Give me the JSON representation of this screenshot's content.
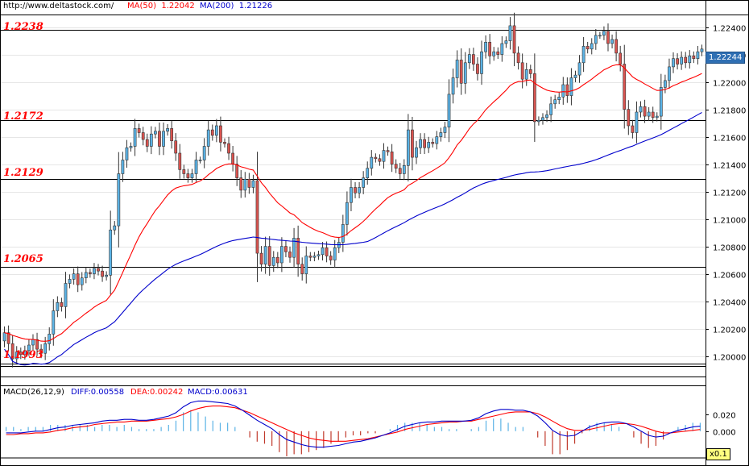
{
  "header": {
    "url": "http://www.deltastock.com/",
    "ma50_label": "MA(50)",
    "ma50_value": "1.22042",
    "ma200_label": "MA(200)",
    "ma200_value": "1.21226"
  },
  "macd_header": {
    "title": "MACD(26,12,9)",
    "diff": "DIFF:0.00558",
    "dea": "DEA:0.00242",
    "macd": "MACD:0.00631"
  },
  "levels": [
    "1.2238",
    "1.2172",
    "1.2129",
    "1.2065",
    "1.1993"
  ],
  "price_badge": "1.22244",
  "zoom_badge": "x0.1",
  "colors": {
    "up": "#5bb3e6",
    "down": "#d9534f",
    "ma50": "#ff0000",
    "ma200": "#0000cc",
    "macd_hist": "#5bb3e6",
    "macd_neg": "#c0392b"
  },
  "chart_data": [
    {
      "type": "candlestick",
      "ylim": [
        1.1988,
        1.2248
      ],
      "yticks": [
        "1.22400",
        "1.22200",
        "1.22000",
        "1.21800",
        "1.21600",
        "1.21400",
        "1.21200",
        "1.21000",
        "1.20800",
        "1.20600",
        "1.20400",
        "1.20200",
        "1.20000"
      ],
      "horizontal_levels": [
        1.2238,
        1.2172,
        1.2129,
        1.2065,
        1.1993
      ],
      "last_price": 1.22244,
      "close": [
        1.2017,
        1.2009,
        1.1998,
        1.2003,
        1.2001,
        1.2004,
        1.2008,
        1.2012,
        1.2005,
        1.2002,
        1.2009,
        1.2016,
        1.2033,
        1.2039,
        1.2036,
        1.2053,
        1.2056,
        1.206,
        1.2052,
        1.2057,
        1.2061,
        1.206,
        1.2064,
        1.2062,
        1.2058,
        1.2059,
        1.2092,
        1.2095,
        1.2133,
        1.2143,
        1.2152,
        1.2153,
        1.2166,
        1.2163,
        1.2158,
        1.2153,
        1.2162,
        1.2164,
        1.2153,
        1.2164,
        1.2166,
        1.2157,
        1.2148,
        1.2136,
        1.2133,
        1.213,
        1.2133,
        1.2143,
        1.2143,
        1.2153,
        1.2165,
        1.2161,
        1.2168,
        1.2156,
        1.2155,
        1.2148,
        1.214,
        1.213,
        1.2121,
        1.2129,
        1.2123,
        1.2128,
        1.2075,
        1.2067,
        1.208,
        1.2066,
        1.2072,
        1.2068,
        1.208,
        1.2076,
        1.2072,
        1.2086,
        1.2067,
        1.206,
        1.2073,
        1.2072,
        1.2073,
        1.2074,
        1.2079,
        1.2073,
        1.207,
        1.2079,
        1.2083,
        1.2096,
        1.2112,
        1.2123,
        1.2119,
        1.2123,
        1.213,
        1.2137,
        1.2145,
        1.2144,
        1.2142,
        1.215,
        1.2149,
        1.214,
        1.2137,
        1.2133,
        1.2139,
        1.2165,
        1.2145,
        1.2152,
        1.2158,
        1.2152,
        1.2156,
        1.2155,
        1.216,
        1.2163,
        1.2167,
        1.2191,
        1.2203,
        1.2216,
        1.2199,
        1.2214,
        1.222,
        1.2213,
        1.2206,
        1.2222,
        1.2229,
        1.2219,
        1.2222,
        1.222,
        1.2228,
        1.223,
        1.2241,
        1.2221,
        1.2214,
        1.2202,
        1.2209,
        1.2206,
        1.2171,
        1.2172,
        1.2174,
        1.2176,
        1.2184,
        1.2187,
        1.2189,
        1.2198,
        1.219,
        1.2203,
        1.2205,
        1.2214,
        1.2226,
        1.2224,
        1.2228,
        1.2234,
        1.2234,
        1.2237,
        1.2228,
        1.2231,
        1.2221,
        1.2213,
        1.218,
        1.2168,
        1.2163,
        1.2178,
        1.2182,
        1.2175,
        1.2178,
        1.2174,
        1.2175,
        1.2196,
        1.2201,
        1.2211,
        1.2217,
        1.2213,
        1.2218,
        1.2214,
        1.2219,
        1.2217,
        1.2222,
        1.2224
      ],
      "macd": {
        "ylim": [
          -0.03,
          0.045
        ],
        "yticks": [
          "0.020",
          "0.000"
        ],
        "diff": [
          -0.002,
          -0.002,
          -0.002,
          -0.001,
          0.0,
          0.0,
          0.002,
          0.004,
          0.005,
          0.007,
          0.008,
          0.009,
          0.01,
          0.012,
          0.013,
          0.013,
          0.014,
          0.014,
          0.013,
          0.013,
          0.014,
          0.016,
          0.018,
          0.022,
          0.029,
          0.034,
          0.036,
          0.036,
          0.035,
          0.034,
          0.033,
          0.03,
          0.025,
          0.019,
          0.013,
          0.008,
          0.003,
          -0.004,
          -0.01,
          -0.013,
          -0.016,
          -0.018,
          -0.019,
          -0.019,
          -0.018,
          -0.017,
          -0.015,
          -0.013,
          -0.012,
          -0.01,
          -0.008,
          -0.005,
          -0.002,
          0.002,
          0.006,
          0.008,
          0.01,
          0.011,
          0.011,
          0.012,
          0.012,
          0.012,
          0.012,
          0.013,
          0.016,
          0.021,
          0.024,
          0.026,
          0.026,
          0.025,
          0.025,
          0.023,
          0.018,
          0.01,
          0.001,
          -0.004,
          -0.006,
          -0.005,
          0.0,
          0.005,
          0.008,
          0.01,
          0.011,
          0.011,
          0.009,
          0.005,
          0.0,
          -0.005,
          -0.007,
          -0.006,
          -0.002,
          0.001,
          0.003,
          0.005,
          0.006
        ],
        "dea": [
          -0.004,
          -0.004,
          -0.003,
          -0.003,
          -0.002,
          -0.002,
          -0.001,
          0.001,
          0.002,
          0.004,
          0.005,
          0.006,
          0.008,
          0.009,
          0.01,
          0.011,
          0.011,
          0.012,
          0.012,
          0.012,
          0.013,
          0.014,
          0.015,
          0.017,
          0.02,
          0.024,
          0.027,
          0.029,
          0.03,
          0.03,
          0.029,
          0.028,
          0.025,
          0.022,
          0.018,
          0.014,
          0.01,
          0.006,
          0.002,
          -0.002,
          -0.005,
          -0.008,
          -0.01,
          -0.011,
          -0.012,
          -0.012,
          -0.012,
          -0.011,
          -0.01,
          -0.009,
          -0.007,
          -0.005,
          -0.003,
          -0.001,
          0.002,
          0.004,
          0.006,
          0.008,
          0.009,
          0.01,
          0.011,
          0.011,
          0.012,
          0.012,
          0.014,
          0.016,
          0.018,
          0.02,
          0.022,
          0.023,
          0.023,
          0.023,
          0.021,
          0.017,
          0.012,
          0.007,
          0.003,
          0.001,
          0.001,
          0.002,
          0.004,
          0.006,
          0.008,
          0.009,
          0.009,
          0.008,
          0.006,
          0.003,
          0.0,
          -0.002,
          -0.002,
          -0.001,
          0.0,
          0.001,
          0.002
        ]
      }
    }
  ]
}
